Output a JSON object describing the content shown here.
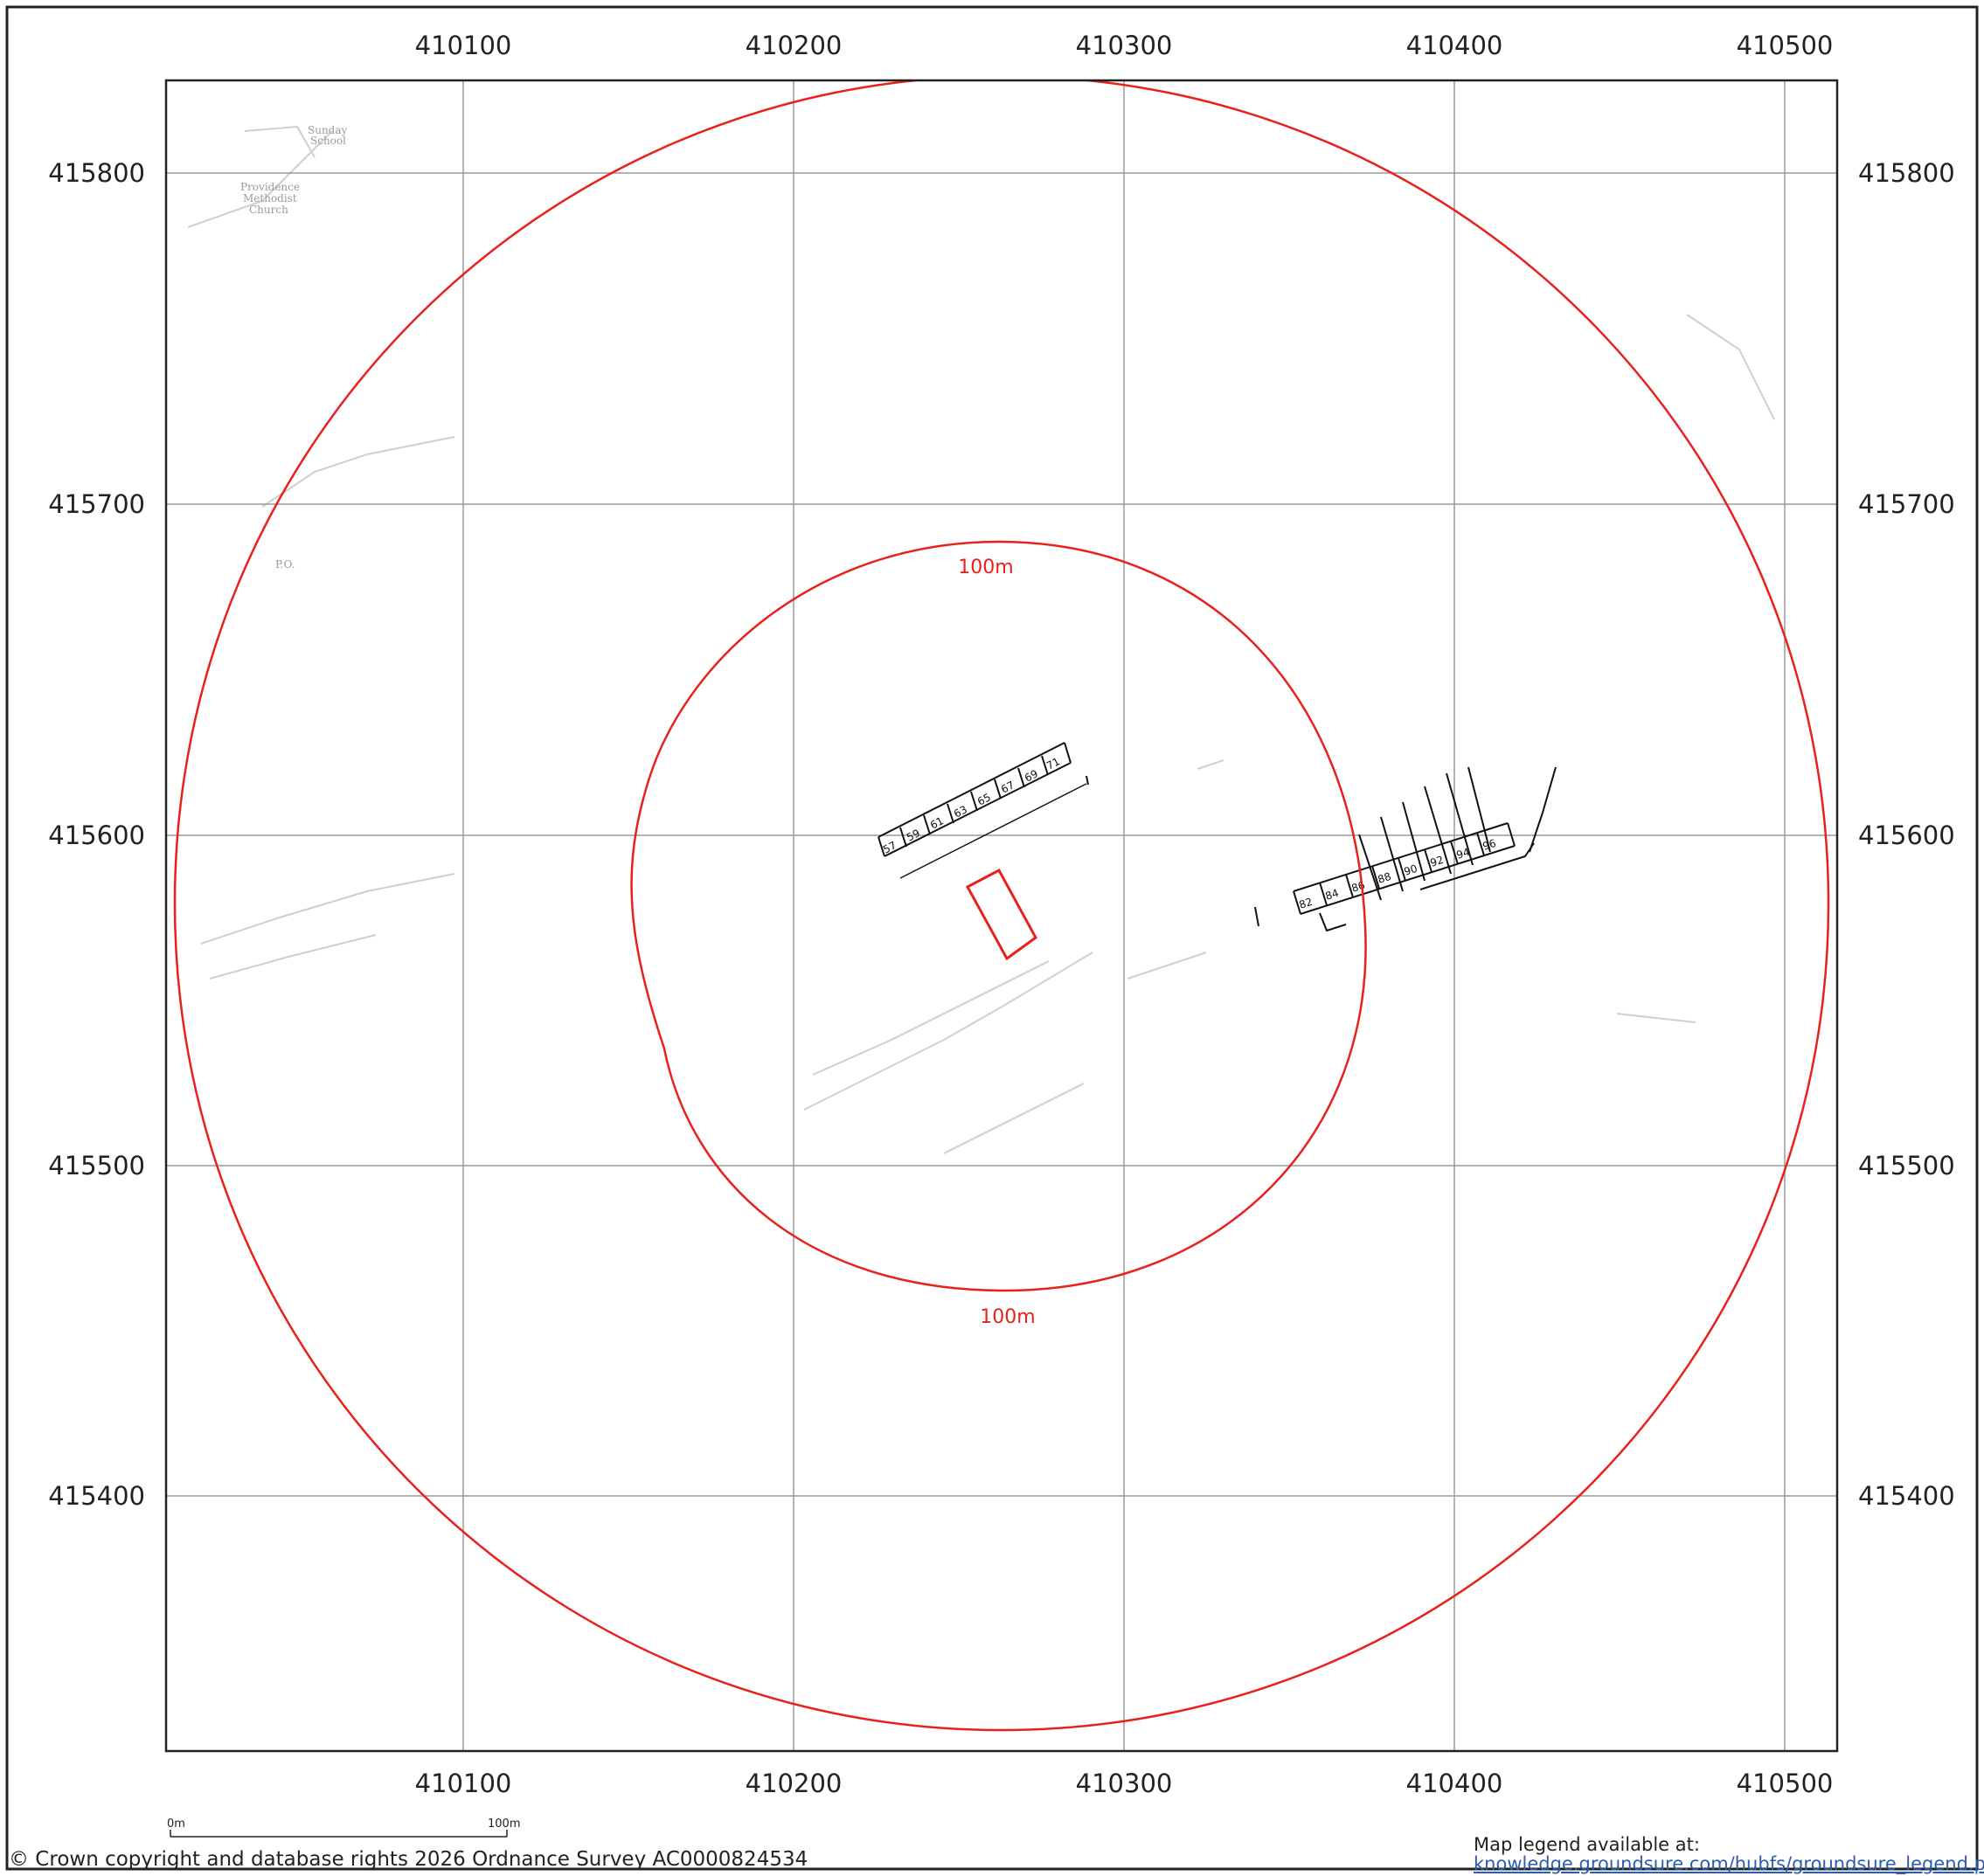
{
  "map": {
    "x_ticks": [
      "410100",
      "410200",
      "410300",
      "410400",
      "410500"
    ],
    "y_ticks": [
      "415800",
      "415700",
      "415600",
      "415500",
      "415400"
    ],
    "buffer_labels": {
      "inner_top": "100m",
      "inner_bottom": "100m"
    },
    "features": {
      "chapel": [
        "Providence",
        "Methodist",
        "Church"
      ],
      "school": [
        "Sunday",
        "School"
      ],
      "post_office": "P.O.",
      "house_numbers_west": [
        "57",
        "59",
        "61",
        "63",
        "65",
        "67",
        "69",
        "71"
      ],
      "house_numbers_east": [
        "82",
        "84",
        "86",
        "88",
        "90",
        "92",
        "94",
        "96"
      ]
    },
    "colors": {
      "buffer": "#e8211b",
      "site": "#e8211b",
      "grid": "#9a9a9a",
      "frame": "#222222"
    }
  },
  "scale_bar": {
    "start_label": "0m",
    "end_label": "100m"
  },
  "footer": {
    "copyright": "© Crown copyright and database rights 2026 Ordnance Survey AC0000824534",
    "legend_title": "Map legend available at:",
    "legend_link": "knowledge.groundsure.com/hubfs/groundsure_legend.pdf"
  }
}
